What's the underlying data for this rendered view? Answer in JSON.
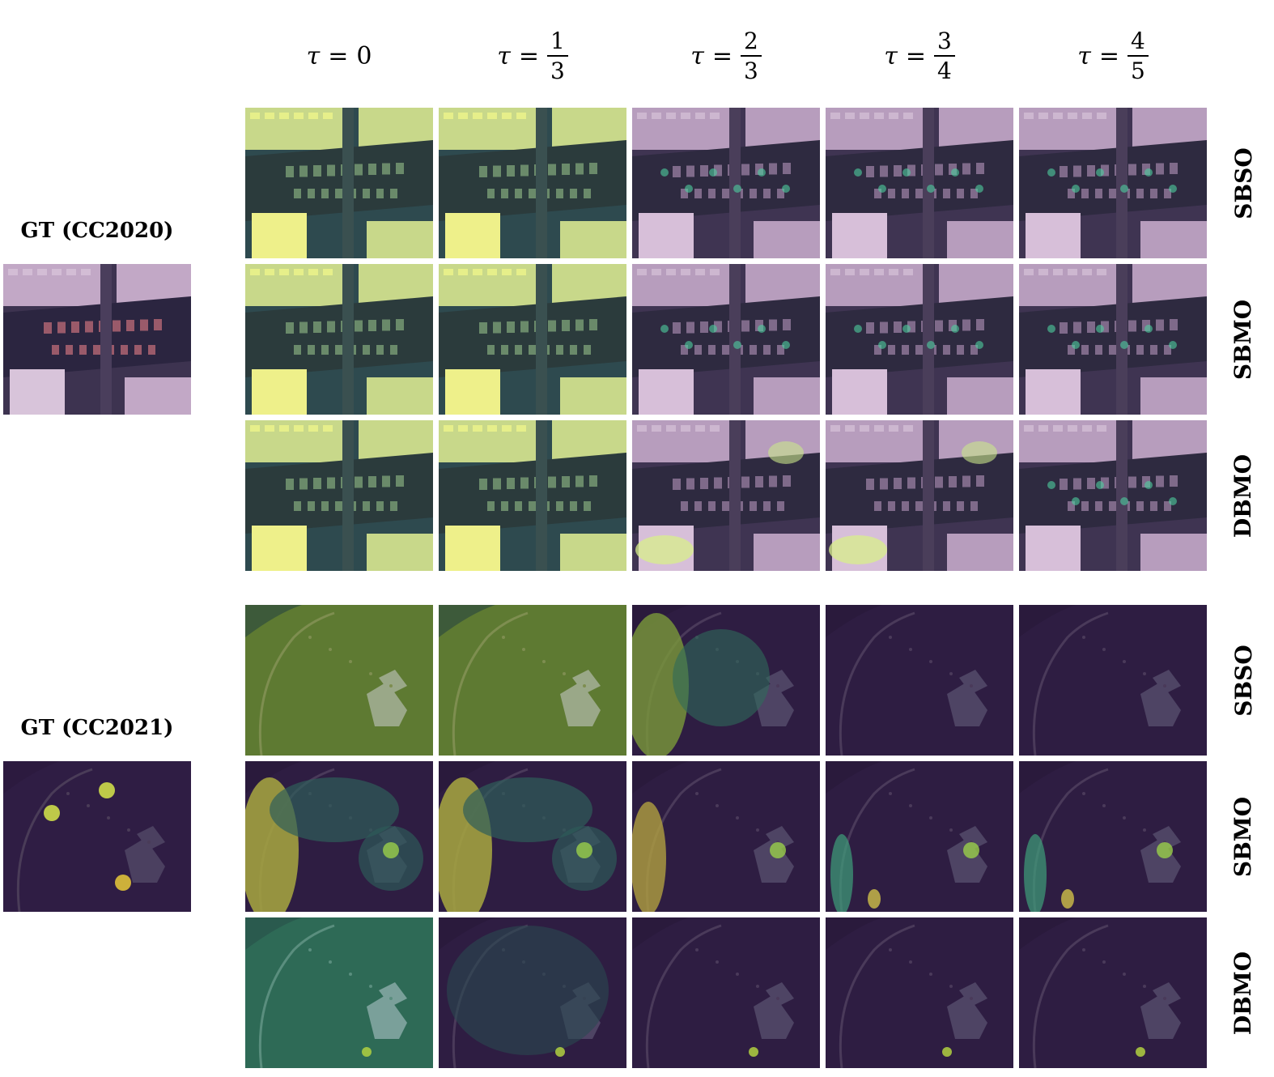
{
  "columns": [
    {
      "symbol": "τ",
      "eq": "=",
      "value": "0"
    },
    {
      "symbol": "τ",
      "eq": "=",
      "num": "1",
      "den": "3"
    },
    {
      "symbol": "τ",
      "eq": "=",
      "num": "2",
      "den": "3"
    },
    {
      "symbol": "τ",
      "eq": "=",
      "num": "3",
      "den": "4"
    },
    {
      "symbol": "τ",
      "eq": "=",
      "num": "4",
      "den": "5"
    }
  ],
  "rows": [
    "SBSO",
    "SBMO",
    "DBMO"
  ],
  "blocks": [
    {
      "gt_label": "GT (CC2020)",
      "scene": "city"
    },
    {
      "gt_label": "GT (CC2021)",
      "scene": "field"
    }
  ],
  "colors": {
    "viridis_low": "#3b1d4f",
    "viridis_mid": "#2f6a6a",
    "viridis_high": "#e8f07a"
  }
}
